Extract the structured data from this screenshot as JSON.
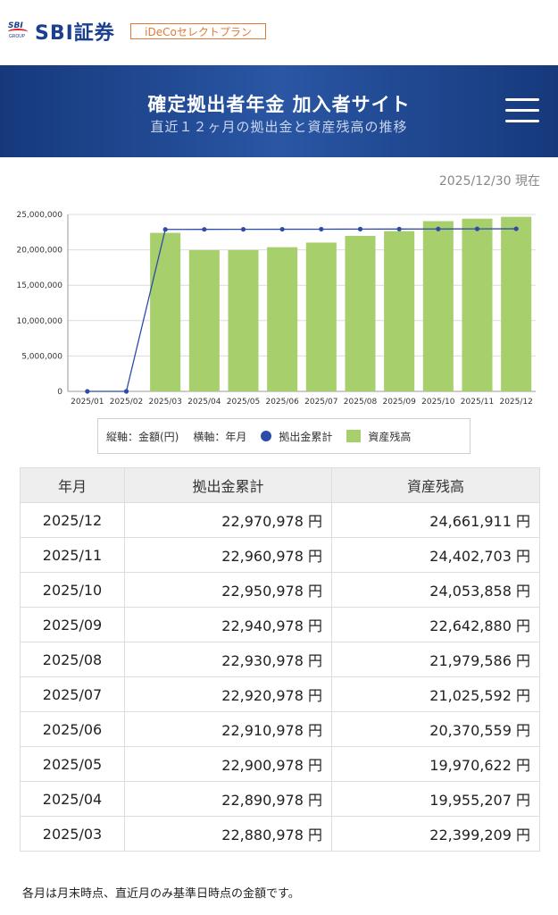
{
  "brand": {
    "group_mark": "SBI",
    "group_sub": "GROUP",
    "name": "SBI証券",
    "plan": "iDeCoセレクトプラン"
  },
  "header": {
    "title": "確定拠出者年金 加入者サイト",
    "subtitle": "直近１２ヶ月の拠出金と資産残高の推移"
  },
  "as_of": "2025/12/30 現在",
  "colors": {
    "header": "#1f4a96",
    "bar": "#a7cf6c",
    "line": "#2e4ba8",
    "badge": "#e07a3a"
  },
  "chart_data": {
    "type": "bar",
    "categories": [
      "2025/01",
      "2025/02",
      "2025/03",
      "2025/04",
      "2025/05",
      "2025/06",
      "2025/07",
      "2025/08",
      "2025/09",
      "2025/10",
      "2025/11",
      "2025/12"
    ],
    "series": [
      {
        "name": "資産残高",
        "kind": "bar",
        "values": [
          0,
          0,
          22399209,
          19955207,
          19970622,
          20370559,
          21025592,
          21979586,
          22642880,
          24053858,
          24402703,
          24661911
        ]
      },
      {
        "name": "拠出金累計",
        "kind": "line",
        "values": [
          0,
          0,
          22880978,
          22890978,
          22900978,
          22910978,
          22920978,
          22930978,
          22940978,
          22950978,
          22960978,
          22970978
        ]
      }
    ],
    "y_ticks": [
      "0",
      "5,000,000",
      "10,000,000",
      "15,000,000",
      "20,000,000",
      "25,000,000"
    ],
    "ylim": [
      0,
      25000000
    ],
    "grid": true,
    "legend_position": "bottom"
  },
  "legend": {
    "y_axis": "縦軸：金額(円)",
    "x_axis": "横軸：年月",
    "line": "拠出金累計",
    "bar": "資産残高"
  },
  "table": {
    "headers": [
      "年月",
      "拠出金累計",
      "資産残高"
    ],
    "rows": [
      [
        "2025/12",
        "22,970,978 円",
        "24,661,911 円"
      ],
      [
        "2025/11",
        "22,960,978 円",
        "24,402,703 円"
      ],
      [
        "2025/10",
        "22,950,978 円",
        "24,053,858 円"
      ],
      [
        "2025/09",
        "22,940,978 円",
        "22,642,880 円"
      ],
      [
        "2025/08",
        "22,930,978 円",
        "21,979,586 円"
      ],
      [
        "2025/07",
        "22,920,978 円",
        "21,025,592 円"
      ],
      [
        "2025/06",
        "22,910,978 円",
        "20,370,559 円"
      ],
      [
        "2025/05",
        "22,900,978 円",
        "19,970,622 円"
      ],
      [
        "2025/04",
        "22,890,978 円",
        "19,955,207 円"
      ],
      [
        "2025/03",
        "22,880,978 円",
        "22,399,209 円"
      ]
    ]
  },
  "footnote": "各月は月末時点、直近月のみ基準日時点の金額です。"
}
